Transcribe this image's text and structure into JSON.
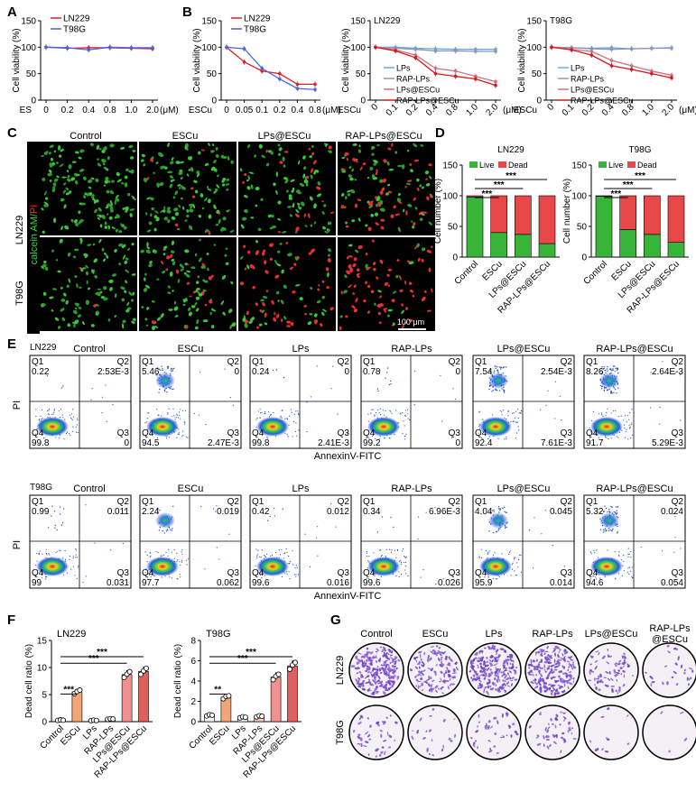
{
  "panel_letters": [
    "A",
    "B",
    "C",
    "D",
    "E",
    "F",
    "G"
  ],
  "colors": {
    "ln229": "#e0202a",
    "t98g": "#4a66d8",
    "lps": "#6aa5e0",
    "rap": "#8c96b8",
    "lpsescu": "#d07080",
    "rapescu": "#d81818",
    "live": "#38b538",
    "dead": "#e84848",
    "bar_escu": "#f2a577",
    "bar_rap": "#f5c6c6",
    "bar_lpsescu": "#f09090",
    "bar_rapescu": "#e06060"
  },
  "chart_data": [
    {
      "id": "A",
      "type": "line",
      "title": "",
      "xlabel": "ES",
      "ylabel": "Cell viability (%)",
      "x_ticks": [
        "0",
        "0.2",
        "0.4",
        "0.8",
        "1.0",
        "2.0"
      ],
      "x_unit": "(μM)",
      "ylim": [
        0,
        150
      ],
      "y_ticks": [
        "0",
        "50",
        "100",
        "150"
      ],
      "series": [
        {
          "name": "LN229",
          "values": [
            100,
            98,
            99,
            99,
            98,
            97
          ]
        },
        {
          "name": "T98G",
          "values": [
            100,
            99,
            95,
            100,
            99,
            99
          ]
        }
      ]
    },
    {
      "id": "B1",
      "type": "line",
      "xlabel": "ESCu",
      "ylabel": "Cell viability (%)",
      "x_ticks": [
        "0",
        "0.05",
        "0.1",
        "0.2",
        "0.4",
        "0.8"
      ],
      "x_unit": "(μM)",
      "ylim": [
        0,
        150
      ],
      "y_ticks": [
        "0",
        "50",
        "100",
        "150"
      ],
      "series": [
        {
          "name": "LN229",
          "values": [
            100,
            72,
            55,
            50,
            30,
            30
          ]
        },
        {
          "name": "T98G",
          "values": [
            100,
            97,
            60,
            40,
            22,
            20
          ]
        }
      ]
    },
    {
      "id": "B2",
      "type": "line",
      "title": "LN229",
      "xlabel": "ESCu",
      "ylabel": "Cell viability (%)",
      "x_ticks": [
        "0",
        "0.1",
        "0.2",
        "0.4",
        "0.8",
        "1.0",
        "2.0"
      ],
      "x_unit": "(μM)",
      "ylim": [
        0,
        150
      ],
      "y_ticks": [
        "0",
        "50",
        "100",
        "150"
      ],
      "series": [
        {
          "name": "LPs",
          "values": [
            100,
            100,
            98,
            97,
            96,
            96,
            96
          ]
        },
        {
          "name": "RAP-LPs",
          "values": [
            100,
            98,
            96,
            93,
            93,
            92,
            92
          ]
        },
        {
          "name": "LPs@ESCu",
          "values": [
            100,
            95,
            85,
            60,
            55,
            45,
            35
          ]
        },
        {
          "name": "RAP-LPs@ESCu",
          "values": [
            100,
            93,
            80,
            50,
            45,
            40,
            28
          ]
        }
      ]
    },
    {
      "id": "B3",
      "type": "line",
      "title": "T98G",
      "xlabel": "ESCu",
      "ylabel": "Cell viability (%)",
      "x_ticks": [
        "0",
        "0.1",
        "0.2",
        "0.4",
        "0.8",
        "1.0",
        "2.0"
      ],
      "x_unit": "(μM)",
      "ylim": [
        0,
        150
      ],
      "y_ticks": [
        "0",
        "50",
        "100",
        "150"
      ],
      "series": [
        {
          "name": "LPs",
          "values": [
            100,
            99,
            98,
            99,
            97,
            98,
            99
          ]
        },
        {
          "name": "RAP-LPs",
          "values": [
            100,
            99,
            97,
            96,
            97,
            98,
            98
          ]
        },
        {
          "name": "LPs@ESCu",
          "values": [
            100,
            96,
            92,
            75,
            65,
            55,
            47
          ]
        },
        {
          "name": "RAP-LPs@ESCu",
          "values": [
            100,
            95,
            85,
            65,
            58,
            50,
            42
          ]
        }
      ]
    },
    {
      "id": "D1",
      "type": "bar",
      "title": "LN229",
      "ylabel": "Cell number (%)",
      "categories": [
        "Control",
        "ESCu",
        "LPs@ESCu",
        "RAP-LPs@ESCu"
      ],
      "ylim": [
        0,
        150
      ],
      "y_ticks": [
        "0",
        "50",
        "100",
        "150"
      ],
      "series": [
        {
          "name": "Live",
          "values": [
            98,
            40,
            37,
            22
          ]
        },
        {
          "name": "Dead",
          "values": [
            2,
            60,
            63,
            78
          ]
        }
      ],
      "significance": [
        "***",
        "***",
        "***"
      ]
    },
    {
      "id": "D2",
      "type": "bar",
      "title": "T98G",
      "ylabel": "Cell number (%)",
      "categories": [
        "Control",
        "ESCu",
        "LPs@ESCu",
        "RAP-LPs@ESCu"
      ],
      "ylim": [
        0,
        150
      ],
      "y_ticks": [
        "0",
        "50",
        "100",
        "150"
      ],
      "series": [
        {
          "name": "Live",
          "values": [
            99,
            45,
            37,
            24
          ]
        },
        {
          "name": "Dead",
          "values": [
            1,
            55,
            63,
            76
          ]
        }
      ],
      "significance": [
        "***",
        "***",
        "***"
      ]
    },
    {
      "id": "F1",
      "type": "bar",
      "title": "LN229",
      "ylabel": "Dead cell ratio (%)",
      "categories": [
        "Control",
        "ESCu",
        "LPs",
        "RAP-LPs",
        "LPs@ESCu",
        "RAP-LPs@ESCu"
      ],
      "ylim": [
        0,
        15
      ],
      "y_ticks": [
        "0",
        "5",
        "10",
        "15"
      ],
      "values": [
        0.25,
        5.5,
        0.2,
        0.45,
        8.7,
        9.3
      ],
      "significance": [
        "***",
        "***",
        "***"
      ]
    },
    {
      "id": "F2",
      "type": "bar",
      "title": "T98G",
      "ylabel": "Dead cell ratio (%)",
      "categories": [
        "Control",
        "ESCu",
        "LPs",
        "RAP-LPs",
        "LPs@ESCu",
        "RAP-LPs@ESCu"
      ],
      "ylim": [
        0,
        8
      ],
      "y_ticks": [
        "0",
        "2",
        "4",
        "6",
        "8"
      ],
      "values": [
        0.6,
        2.4,
        0.4,
        0.5,
        4.4,
        5.5
      ],
      "significance": [
        "**",
        "***",
        "***"
      ]
    }
  ],
  "panel_c": {
    "columns": [
      "Control",
      "ESCu",
      "LPs@ESCu",
      "RAP-LPs@ESCu"
    ],
    "rows": [
      "LN229",
      "T98G"
    ],
    "stain_label_1": "calcein AM/",
    "stain_label_2": "PI",
    "scale_bar": "100 μm"
  },
  "panel_e": {
    "x_axis_label": "AnnexinV-FITC",
    "y_axis_label": "PI",
    "quadrant_labels": [
      "Q1",
      "Q2",
      "Q3",
      "Q4"
    ],
    "groups": [
      "Control",
      "ESCu",
      "LPs",
      "RAP-LPs",
      "LPs@ESCu",
      "RAP-LPs@ESCu"
    ],
    "rows": [
      {
        "cell_line": "LN229",
        "plots": [
          {
            "q1": "0.22",
            "q2": "2.53E-3",
            "q4": "99.8",
            "q3": "0"
          },
          {
            "q1": "5.46",
            "q2": "0",
            "q4": "94.5",
            "q3": "2.47E-3"
          },
          {
            "q1": "0.24",
            "q2": "0",
            "q4": "99.8",
            "q3": "2.41E-3"
          },
          {
            "q1": "0.78",
            "q2": "0",
            "q4": "99.2",
            "q3": "0"
          },
          {
            "q1": "7.54",
            "q2": "2.54E-3",
            "q4": "92.4",
            "q3": "7.61E-3"
          },
          {
            "q1": "8.26",
            "q2": "2.64E-3",
            "q4": "91.7",
            "q3": "5.29E-3"
          }
        ]
      },
      {
        "cell_line": "T98G",
        "plots": [
          {
            "q1": "0.99",
            "q2": "0.011",
            "q4": "99",
            "q3": "0.031"
          },
          {
            "q1": "2.24",
            "q2": "0.019",
            "q4": "97.7",
            "q3": "0.062"
          },
          {
            "q1": "0.42",
            "q2": "0.012",
            "q4": "99.6",
            "q3": "0.016"
          },
          {
            "q1": "0.34",
            "q2": "6.96E-3",
            "q4": "99.6",
            "q3": "0.026"
          },
          {
            "q1": "4.04",
            "q2": "0.045",
            "q4": "95.9",
            "q3": "0.014"
          },
          {
            "q1": "5.32",
            "q2": "0.024",
            "q4": "94.6",
            "q3": "0.054"
          }
        ]
      }
    ]
  },
  "panel_g": {
    "columns": [
      "Control",
      "ESCu",
      "LPs",
      "RAP-LPs",
      "LPs@ESCu",
      "RAP-LPs\n@ESCu"
    ],
    "rows": [
      "LN229",
      "T98G"
    ]
  }
}
